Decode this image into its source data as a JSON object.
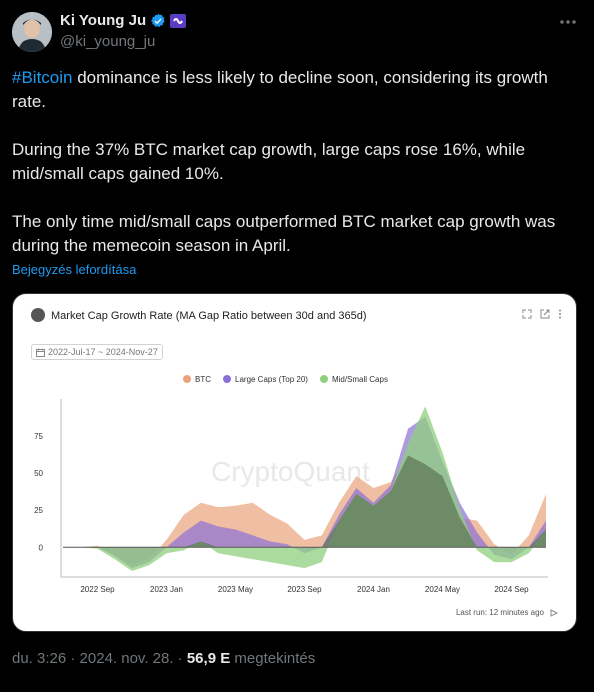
{
  "author": {
    "name": "Ki Young Ju",
    "handle": "@ki_young_ju",
    "verified_color": "#1d9bf0",
    "badge_color": "#5b3cc4"
  },
  "tweet": {
    "hashtag": "#Bitcoin",
    "line1_rest": " dominance is less likely to decline soon, considering its growth rate.",
    "para2": "During the 37% BTC market cap growth, large caps rose 16%, while mid/small caps gained 10%.",
    "para3": "The only time mid/small caps outperformed BTC market cap growth was during the memecoin season in April.",
    "translate": "Bejegyzés lefordítása"
  },
  "card": {
    "title": "Market Cap  Growth Rate (MA Gap Ratio between 30d and 365d)",
    "date_range": "2022-Jul-17 ~ 2024-Nov-27",
    "watermark": "CryptoQuant",
    "last_run": "Last run: 12 minutes ago"
  },
  "chart_data": {
    "type": "area",
    "title": "Market Cap  Growth Rate (MA Gap Ratio between 30d and 365d)",
    "x": [
      "2022-07",
      "2022-08",
      "2022-09",
      "2022-10",
      "2022-11",
      "2022-12",
      "2023-01",
      "2023-02",
      "2023-03",
      "2023-04",
      "2023-05",
      "2023-06",
      "2023-07",
      "2023-08",
      "2023-09",
      "2023-10",
      "2023-11",
      "2023-12",
      "2024-01",
      "2024-02",
      "2024-03",
      "2024-04",
      "2024-05",
      "2024-06",
      "2024-07",
      "2024-08",
      "2024-09",
      "2024-10",
      "2024-11"
    ],
    "x_tick_labels": [
      "2022 Sep",
      "2023 Jan",
      "2023 May",
      "2023 Sep",
      "2024 Jan",
      "2024 May",
      "2024 Sep"
    ],
    "y_ticks": [
      0,
      25,
      50,
      75
    ],
    "ylim": [
      -18,
      100
    ],
    "series": [
      {
        "name": "BTC",
        "color": "#e9a37a",
        "values": [
          0,
          0,
          1,
          -5,
          -12,
          -8,
          5,
          22,
          30,
          27,
          28,
          30,
          22,
          16,
          5,
          8,
          30,
          48,
          40,
          44,
          62,
          56,
          48,
          20,
          18,
          2,
          -5,
          8,
          36
        ]
      },
      {
        "name": "Large Caps (Top 20)",
        "color": "#8b6fd6",
        "values": [
          0,
          0,
          0,
          -6,
          -14,
          -10,
          0,
          10,
          18,
          14,
          12,
          8,
          4,
          2,
          -4,
          0,
          22,
          40,
          30,
          42,
          80,
          88,
          58,
          30,
          10,
          -5,
          -8,
          0,
          18
        ]
      },
      {
        "name": "Mid/Small Caps",
        "color": "#8fcf7d",
        "values": [
          0,
          0,
          -1,
          -8,
          -16,
          -12,
          -4,
          -2,
          4,
          -4,
          -6,
          -8,
          -10,
          -12,
          -14,
          -10,
          18,
          36,
          28,
          38,
          70,
          95,
          64,
          26,
          -2,
          -10,
          -10,
          -4,
          12
        ]
      }
    ],
    "legend_position": "top-center"
  },
  "meta": {
    "datetime": "du. 3:26 · 2024. nov. 28. · ",
    "views": "56,9 E",
    "views_label": " megtekintés"
  }
}
